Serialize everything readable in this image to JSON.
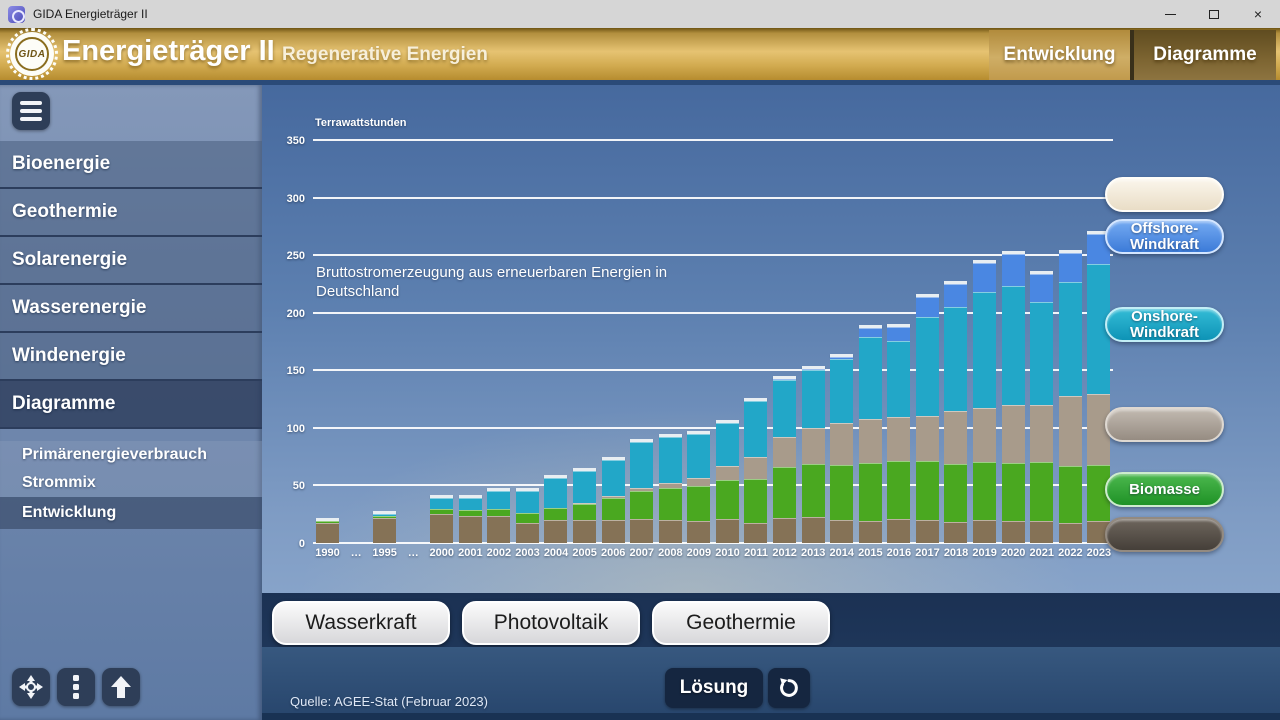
{
  "titlebar": {
    "title": "GIDA Energieträger II"
  },
  "header": {
    "logo_text": "GIDA",
    "app_title": "Energieträger II",
    "subtitle": "Regenerative Energien",
    "tabs": [
      {
        "label": "Entwicklung",
        "active": false
      },
      {
        "label": "Diagramme",
        "active": true
      }
    ],
    "accent_gold": "#d2ab50"
  },
  "sidebar": {
    "menu": [
      {
        "label": "Bioenergie",
        "active": false
      },
      {
        "label": "Geothermie",
        "active": false
      },
      {
        "label": "Solarenergie",
        "active": false
      },
      {
        "label": "Wasserenergie",
        "active": false
      },
      {
        "label": "Windenergie",
        "active": false
      },
      {
        "label": "Diagramme",
        "active": true
      }
    ],
    "submenu": [
      {
        "label": "Primärenergieverbrauch",
        "active": false
      },
      {
        "label": "Strommix",
        "active": false
      },
      {
        "label": "Entwicklung",
        "active": true
      }
    ],
    "tool_icons": [
      "move-icon",
      "kebab-menu-icon",
      "arrow-up-icon"
    ]
  },
  "chart_data": {
    "type": "bar",
    "stacked": true,
    "title": "Bruttostromerzeugung aus erneuerbaren Energien in Deutschland",
    "ylabel": "Terrawattstunden",
    "ylim": [
      0,
      350
    ],
    "ytick_step": 50,
    "grid": true,
    "series_names": [
      "Wasserkraft",
      "Biomasse",
      "Photovoltaik",
      "Onshore-Windkraft",
      "Offshore-Windkraft"
    ],
    "series_colors": [
      "#857256",
      "#4aa820",
      "#a89b8b",
      "#22a7c8",
      "#4a87e2"
    ],
    "columns": [
      {
        "label": "1990",
        "values": [
          17.4,
          1.4,
          0,
          0.1,
          0
        ]
      },
      {
        "label": "…",
        "gap": true
      },
      {
        "label": "1995",
        "values": [
          21.6,
          2.0,
          0,
          1.5,
          0
        ]
      },
      {
        "label": "…",
        "gap": true
      },
      {
        "label": "2000",
        "values": [
          24.9,
          4.7,
          0.1,
          9.5,
          0
        ]
      },
      {
        "label": "2001",
        "values": [
          23.2,
          5.2,
          0.1,
          10.5,
          0
        ]
      },
      {
        "label": "2002",
        "values": [
          23.7,
          6.0,
          0.2,
          15.8,
          0
        ]
      },
      {
        "label": "2003",
        "values": [
          17.7,
          8.4,
          0.3,
          18.7,
          0
        ]
      },
      {
        "label": "2004",
        "values": [
          20.0,
          10.1,
          0.6,
          25.5,
          0
        ]
      },
      {
        "label": "2005",
        "values": [
          19.6,
          14.1,
          1.3,
          27.2,
          0
        ]
      },
      {
        "label": "2006",
        "values": [
          20.0,
          18.9,
          2.2,
          30.7,
          0
        ]
      },
      {
        "label": "2007",
        "values": [
          21.2,
          23.8,
          3.1,
          39.7,
          0
        ]
      },
      {
        "label": "2008",
        "values": [
          20.4,
          27.1,
          4.4,
          40.6,
          0
        ]
      },
      {
        "label": "2009",
        "values": [
          19.0,
          30.5,
          6.6,
          38.6,
          0
        ]
      },
      {
        "label": "2010",
        "values": [
          21.0,
          33.9,
          11.7,
          37.8,
          0
        ]
      },
      {
        "label": "2011",
        "values": [
          17.7,
          37.5,
          19.6,
          48.3,
          0.6
        ]
      },
      {
        "label": "2012",
        "values": [
          22.1,
          43.5,
          26.4,
          49.9,
          0.7
        ]
      },
      {
        "label": "2013",
        "values": [
          23.0,
          45.5,
          31.0,
          50.8,
          0.9
        ]
      },
      {
        "label": "2014",
        "values": [
          19.6,
          48.3,
          36.1,
          55.9,
          1.4
        ]
      },
      {
        "label": "2015",
        "values": [
          19.0,
          50.3,
          38.7,
          70.9,
          8.3
        ]
      },
      {
        "label": "2016",
        "values": [
          20.5,
          50.9,
          38.1,
          65.9,
          12.1
        ]
      },
      {
        "label": "2017",
        "values": [
          20.2,
          50.9,
          39.4,
          85.7,
          17.7
        ]
      },
      {
        "label": "2018",
        "values": [
          18.0,
          50.9,
          45.8,
          90.5,
          19.5
        ]
      },
      {
        "label": "2019",
        "values": [
          20.2,
          50.4,
          46.5,
          101.1,
          24.7
        ]
      },
      {
        "label": "2020",
        "values": [
          18.7,
          50.5,
          50.6,
          103.7,
          27.3
        ]
      },
      {
        "label": "2021",
        "values": [
          19.4,
          50.6,
          49.5,
          89.6,
          24.4
        ]
      },
      {
        "label": "2022",
        "values": [
          17.5,
          49.5,
          60.8,
          99.0,
          25.1
        ]
      },
      {
        "label": "2023",
        "values": [
          19.0,
          49.0,
          61.0,
          113.0,
          26.0
        ]
      }
    ],
    "legend_position": "right"
  },
  "answer_slots": [
    {
      "id": "slot-top",
      "label": "",
      "color_key": "cream"
    },
    {
      "id": "slot-offshore",
      "label": "Offshore-Windkraft",
      "color_key": "offshore"
    },
    {
      "id": "slot-onshore",
      "label": "Onshore-Windkraft",
      "color_key": "onshore"
    },
    {
      "id": "slot-photovoltaik",
      "label": "",
      "color_key": "gray"
    },
    {
      "id": "slot-biomasse",
      "label": "Biomasse",
      "color_key": "green"
    },
    {
      "id": "slot-bottom",
      "label": "",
      "color_key": "dark"
    }
  ],
  "drag_buttons": [
    {
      "label": "Wasserkraft"
    },
    {
      "label": "Photovoltaik"
    },
    {
      "label": "Geothermie"
    }
  ],
  "footer": {
    "solution_label": "Lösung",
    "reset_icon": "reset-icon",
    "source_note": "Quelle: AGEE-Stat (Februar 2023)"
  }
}
